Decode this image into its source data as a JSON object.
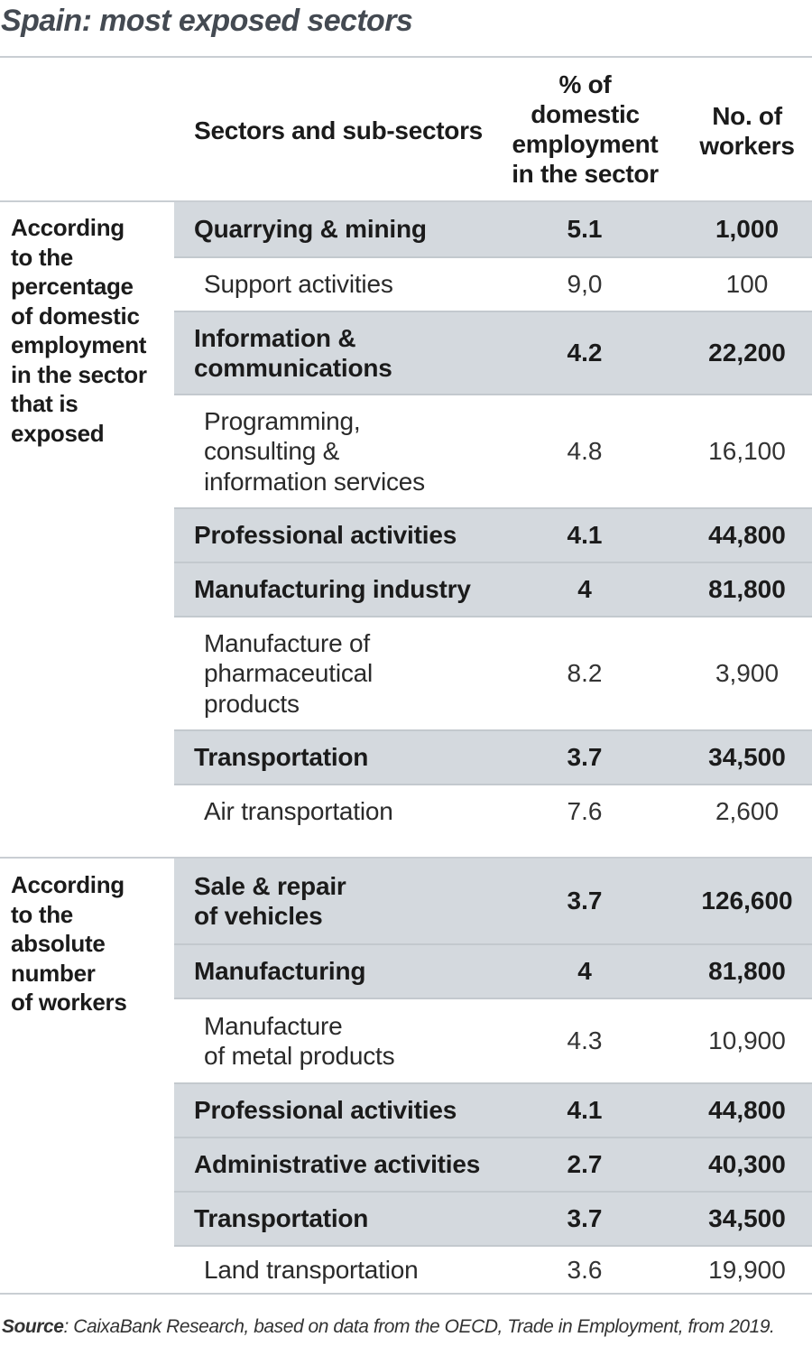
{
  "title": "Spain: most exposed sectors",
  "header": {
    "sector_col": "Sectors and sub-sectors",
    "pct_col": [
      "% of",
      "domestic",
      "employment",
      "in the sector"
    ],
    "workers_col": [
      "No. of",
      "workers"
    ]
  },
  "groups": [
    {
      "label": [
        "According",
        "to the",
        "percentage",
        "of domestic",
        "employment",
        "in the sector",
        "that is",
        "exposed"
      ],
      "rows": [
        {
          "level": "main",
          "name": [
            "Quarrying & mining"
          ],
          "pct": "5.1",
          "workers": "1,000"
        },
        {
          "level": "sub",
          "name": [
            "Support activities"
          ],
          "pct": "9,0",
          "workers": "100"
        },
        {
          "level": "main",
          "name": [
            "Information &",
            "communications"
          ],
          "pct": "4.2",
          "workers": "22,200"
        },
        {
          "level": "sub",
          "name": [
            "Programming,",
            "consulting &",
            "information services"
          ],
          "pct": "4.8",
          "workers": "16,100"
        },
        {
          "level": "main",
          "name": [
            "Professional activities"
          ],
          "pct": "4.1",
          "workers": "44,800"
        },
        {
          "level": "main",
          "name": [
            "Manufacturing industry"
          ],
          "pct": "4",
          "workers": "81,800"
        },
        {
          "level": "sub",
          "name": [
            "Manufacture of",
            "pharmaceutical",
            "products"
          ],
          "pct": "8.2",
          "workers": "3,900"
        },
        {
          "level": "main",
          "name": [
            "Transportation"
          ],
          "pct": "3.7",
          "workers": "34,500"
        },
        {
          "level": "sub",
          "name": [
            "Air transportation"
          ],
          "pct": "7.6",
          "workers": "2,600"
        }
      ]
    },
    {
      "label": [
        "According",
        "to the",
        "absolute",
        "number",
        "of workers"
      ],
      "rows": [
        {
          "level": "main",
          "name": [
            "Sale & repair",
            "of vehicles"
          ],
          "pct": "3.7",
          "workers": "126,600"
        },
        {
          "level": "main",
          "name": [
            "Manufacturing"
          ],
          "pct": "4",
          "workers": "81,800"
        },
        {
          "level": "sub",
          "name": [
            "Manufacture",
            "of metal products"
          ],
          "pct": "4.3",
          "workers": "10,900"
        },
        {
          "level": "main",
          "name": [
            "Professional activities"
          ],
          "pct": "4.1",
          "workers": "44,800"
        },
        {
          "level": "main",
          "name": [
            "Administrative activities"
          ],
          "pct": "2.7",
          "workers": "40,300"
        },
        {
          "level": "main",
          "name": [
            "Transportation"
          ],
          "pct": "3.7",
          "workers": "34,500"
        },
        {
          "level": "sub",
          "name": [
            "Land transportation"
          ],
          "pct": "3.6",
          "workers": "19,900"
        }
      ]
    }
  ],
  "source": {
    "label": "Source",
    "text": ": CaixaBank Research, based on data from the OECD, Trade in Employment, from 2019."
  }
}
